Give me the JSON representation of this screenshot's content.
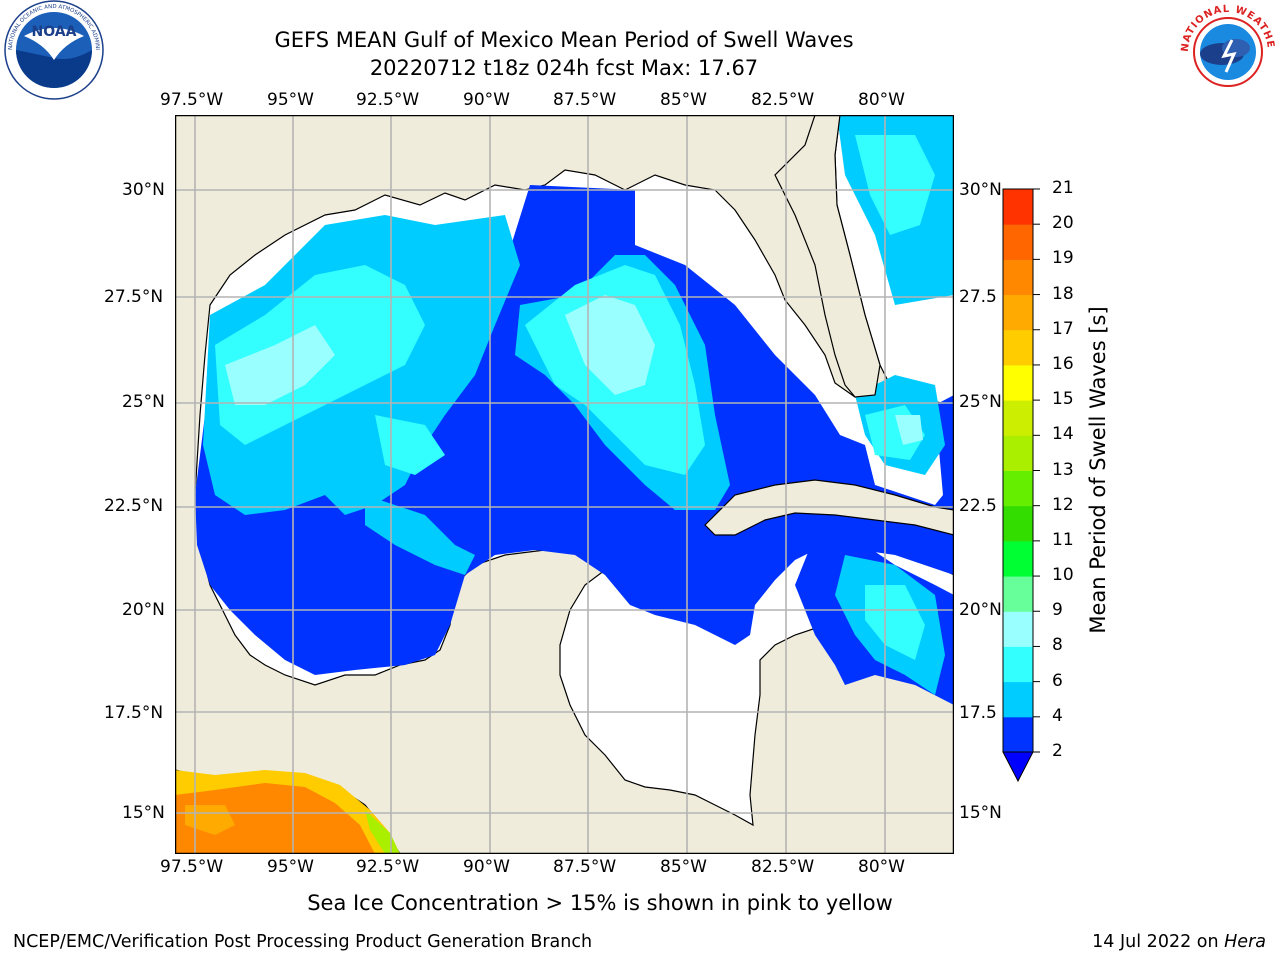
{
  "header": {
    "title_line1": "GEFS MEAN Gulf of Mexico Mean Period of Swell Waves",
    "title_line2": "20220712 t18z 024h fcst   Max: 17.67"
  },
  "logos": {
    "left": {
      "text": "NOAA",
      "ring_text": "NATIONAL OCEANIC AND ATMOSPHERIC ADMINISTRATION · U.S. DEPARTMENT OF COMMERCE",
      "icon": "noaa-logo-icon"
    },
    "right": {
      "ring_text": "NATIONAL WEATHER SERVICE",
      "icon": "nws-logo-icon"
    }
  },
  "map": {
    "lon_ticks": [
      "97.5°W",
      "95°W",
      "92.5°W",
      "90°W",
      "87.5°W",
      "85°W",
      "82.5°W",
      "80°W"
    ],
    "lat_ticks_left": [
      "30°N",
      "27.5°N",
      "25°N",
      "22.5°N",
      "20°N",
      "17.5°N",
      "15°N"
    ],
    "lat_ticks_right": [
      "30°N",
      "27.5",
      "25°N",
      "22.5",
      "20°N",
      "17.5",
      "15°N"
    ],
    "colors": {
      "land": "#efecdb",
      "grid": "#b4b4b4",
      "ocean_blank": "#ffffff"
    }
  },
  "colorbar": {
    "label": "Mean Period of Swell Waves [s]",
    "ticks": [
      "2",
      "4",
      "6",
      "8",
      "9",
      "10",
      "11",
      "12",
      "13",
      "14",
      "15",
      "16",
      "17",
      "18",
      "19",
      "20",
      "21"
    ],
    "colors": [
      "#0033ff",
      "#00ccff",
      "#33ffff",
      "#99ffff",
      "#66ff99",
      "#00ff33",
      "#33dd00",
      "#66ee00",
      "#aaee00",
      "#ccee00",
      "#ffff00",
      "#ffcc00",
      "#ffaa00",
      "#ff8800",
      "#ff6600",
      "#ff3300",
      "#ff0000"
    ],
    "extend_color": "#0000ff"
  },
  "annotation": "Sea Ice Concentration > 15% is shown in pink to yellow",
  "footer": {
    "left": "NCEP/EMC/Verification Post Processing Product Generation Branch",
    "right_date": "14 Jul 2022 on ",
    "right_host": "Hera"
  }
}
